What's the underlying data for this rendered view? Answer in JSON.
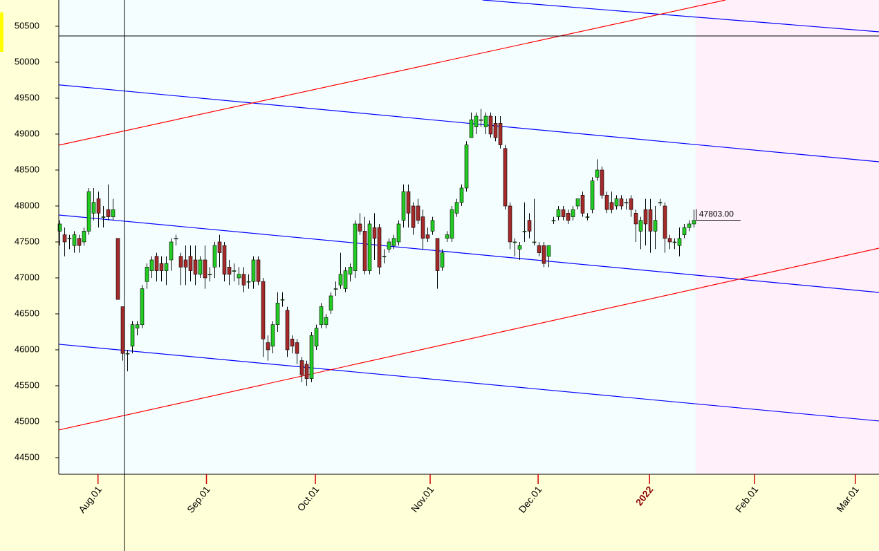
{
  "chart_data": {
    "type": "candlestick",
    "colors": {
      "up": "#22cc22",
      "down": "#a52a2a",
      "wick": "#000000"
    },
    "open": [
      47650,
      47600,
      47550,
      47450,
      47550,
      47500,
      47650,
      47900,
      48100,
      47850,
      47950,
      47850,
      47550,
      46600,
      45950,
      46050,
      46300,
      46350,
      46950,
      47100,
      47300,
      47200,
      47100,
      47250,
      47550,
      47300,
      47250,
      47300,
      47250,
      47050,
      47250,
      47050,
      47150,
      47500,
      47450,
      47150,
      47100,
      47000,
      47050,
      46950,
      46950,
      47250,
      46950,
      46100,
      46050,
      46350,
      46700,
      46550,
      46150,
      46100,
      45850,
      45800,
      45600,
      46050,
      46350,
      46350,
      46550,
      46850,
      46900,
      46850,
      47050,
      47100,
      47750,
      47650,
      47100,
      47700,
      47700,
      47300,
      47400,
      47450,
      47500,
      47800,
      48200,
      48000,
      48000,
      47850,
      47600,
      47650,
      47550,
      47150,
      47550,
      47550,
      47900,
      48050,
      48250,
      48950,
      49100,
      49200,
      49100,
      49250,
      49150,
      49150,
      48800,
      48000,
      47500,
      47400,
      47650,
      47800,
      47500,
      47450,
      47450,
      47300,
      47800,
      47850,
      47950,
      47900,
      47850,
      48000,
      48150,
      47850,
      47950,
      48400,
      48500,
      48150,
      48050,
      48000,
      48100,
      48050,
      48100,
      47900,
      47650,
      47950,
      47950,
      47650,
      48050,
      48000,
      47550,
      47500,
      47450,
      47600,
      47700,
      47750
    ],
    "high": [
      47800,
      47700,
      47600,
      47650,
      47600,
      47700,
      48250,
      48250,
      48200,
      48000,
      48300,
      48100,
      47550,
      46600,
      46000,
      46400,
      46400,
      46900,
      47200,
      47300,
      47350,
      47300,
      47300,
      47550,
      47600,
      47350,
      47450,
      47450,
      47450,
      47300,
      47450,
      47150,
      47500,
      47600,
      47500,
      47250,
      47200,
      47150,
      47150,
      47050,
      47300,
      47300,
      47000,
      46200,
      46400,
      46800,
      46800,
      46600,
      46200,
      46150,
      45900,
      45850,
      46250,
      46350,
      46650,
      46500,
      46800,
      46950,
      47350,
      47150,
      47200,
      47800,
      47900,
      47850,
      47800,
      47900,
      47750,
      47400,
      47550,
      47600,
      47800,
      48300,
      48300,
      48050,
      48100,
      47950,
      47700,
      47850,
      47550,
      47400,
      47650,
      48000,
      48100,
      48300,
      48900,
      49300,
      49300,
      49350,
      49300,
      49300,
      49250,
      49250,
      48850,
      48050,
      47550,
      47500,
      48050,
      47900,
      48100,
      47500,
      47500,
      47450,
      47850,
      48000,
      48000,
      47950,
      48000,
      48100,
      48200,
      47900,
      48400,
      48650,
      48550,
      48200,
      48200,
      48150,
      48150,
      48100,
      48150,
      47950,
      47850,
      48100,
      48100,
      48000,
      48100,
      48050,
      47600,
      47550,
      47700,
      47750,
      47800,
      47950
    ],
    "low": [
      47450,
      47300,
      47400,
      47350,
      47350,
      47450,
      47600,
      47800,
      47700,
      47700,
      47800,
      47800,
      46700,
      45850,
      45700,
      45950,
      46200,
      46300,
      46850,
      47000,
      46950,
      46950,
      46900,
      47100,
      47450,
      46900,
      46900,
      46950,
      46900,
      47000,
      46850,
      46950,
      47000,
      47150,
      46950,
      46900,
      46950,
      46900,
      46800,
      46850,
      46850,
      46900,
      45900,
      45850,
      45950,
      46250,
      46600,
      45900,
      45950,
      45800,
      45550,
      45500,
      45550,
      46000,
      46300,
      46300,
      46500,
      46750,
      46850,
      46800,
      46950,
      47000,
      47600,
      47050,
      47050,
      47250,
      47050,
      47200,
      47350,
      47400,
      47450,
      47700,
      47700,
      47600,
      47750,
      47400,
      47500,
      47600,
      46850,
      47100,
      47500,
      47500,
      47850,
      48000,
      48200,
      48950,
      49000,
      49100,
      49000,
      48950,
      48900,
      48800,
      47950,
      47400,
      47300,
      47250,
      47500,
      47550,
      47450,
      47300,
      47150,
      47150,
      47750,
      47800,
      47800,
      47750,
      47800,
      47950,
      47850,
      47800,
      47900,
      48350,
      48100,
      47900,
      47900,
      47950,
      47950,
      47950,
      47850,
      47500,
      47400,
      47450,
      47350,
      47400,
      48000,
      47350,
      47400,
      47400,
      47300,
      47550,
      47650,
      47700
    ],
    "close": [
      47750,
      47500,
      47550,
      47600,
      47450,
      47650,
      48200,
      48050,
      47900,
      47850,
      47850,
      47950,
      46700,
      45950,
      45950,
      46350,
      46350,
      46850,
      47150,
      47250,
      47100,
      47100,
      47200,
      47500,
      47550,
      47150,
      47150,
      47100,
      47050,
      47250,
      47000,
      47050,
      47450,
      47350,
      47050,
      47050,
      47100,
      47050,
      46900,
      46950,
      47250,
      46950,
      46150,
      46000,
      46350,
      46650,
      46700,
      46000,
      46050,
      45950,
      45650,
      45600,
      46200,
      46300,
      46600,
      46450,
      46750,
      46850,
      47050,
      47100,
      47150,
      47750,
      47650,
      47100,
      47750,
      47550,
      47150,
      47300,
      47500,
      47550,
      47750,
      48200,
      47900,
      47700,
      47800,
      47550,
      47550,
      47800,
      47100,
      47350,
      47600,
      47950,
      48050,
      48250,
      48850,
      49200,
      49250,
      49200,
      49250,
      49000,
      48950,
      48850,
      48000,
      47500,
      47500,
      47450,
      47650,
      47650,
      47500,
      47350,
      47200,
      47450,
      47800,
      47950,
      47850,
      47800,
      47950,
      48100,
      47900,
      47850,
      48350,
      48500,
      48150,
      47950,
      47950,
      48100,
      48000,
      48050,
      47950,
      47750,
      47800,
      47750,
      47650,
      47800,
      48050,
      47550,
      47500,
      47500,
      47550,
      47700,
      47750,
      47800
    ],
    "trend_lines": [
      {
        "color": "#0000ff",
        "x": [
          87.4,
          169.3
        ],
        "values": [
          50865,
          50423
        ]
      },
      {
        "color": "#0000ff",
        "x": [
          -0.1,
          169.3
        ],
        "values": [
          49685,
          48615
        ]
      },
      {
        "color": "#0000ff",
        "x": [
          -0.1,
          169.3
        ],
        "values": [
          47875,
          46798
        ]
      },
      {
        "color": "#0000ff",
        "x": [
          -0.1,
          169.3
        ],
        "values": [
          46077,
          45010
        ]
      },
      {
        "color": "#ff0000",
        "x": [
          -0.1,
          137.6
        ],
        "values": [
          48846,
          50865
        ]
      },
      {
        "color": "#ff0000",
        "x": [
          -0.1,
          169.3
        ],
        "values": [
          44885,
          47413
        ]
      }
    ],
    "last_price": {
      "value": 47803,
      "label": "47803.00"
    },
    "xlim": [
      -0.1,
      169.3
    ],
    "ylim": [
      44269,
      50865
    ],
    "yticks": [
      44500,
      45000,
      45500,
      46000,
      46500,
      47000,
      47500,
      48000,
      48500,
      49000,
      49500,
      50000,
      50500
    ],
    "xticks": [
      {
        "value": 8,
        "label": "Aug.01"
      },
      {
        "value": 30.4,
        "label": "Sep.01"
      },
      {
        "value": 52.9,
        "label": "Oct.01"
      },
      {
        "value": 76.6,
        "label": "Nov.01"
      },
      {
        "value": 98.9,
        "label": "Dec.01"
      },
      {
        "value": 121.9,
        "label": "2022"
      },
      {
        "value": 143.6,
        "label": "Feb.01"
      },
      {
        "value": 164.4,
        "label": "Mar.01"
      }
    ],
    "emphasized_xtick": 5,
    "emphasis_color": "#8b0000",
    "tick_color": "#cc0000"
  }
}
